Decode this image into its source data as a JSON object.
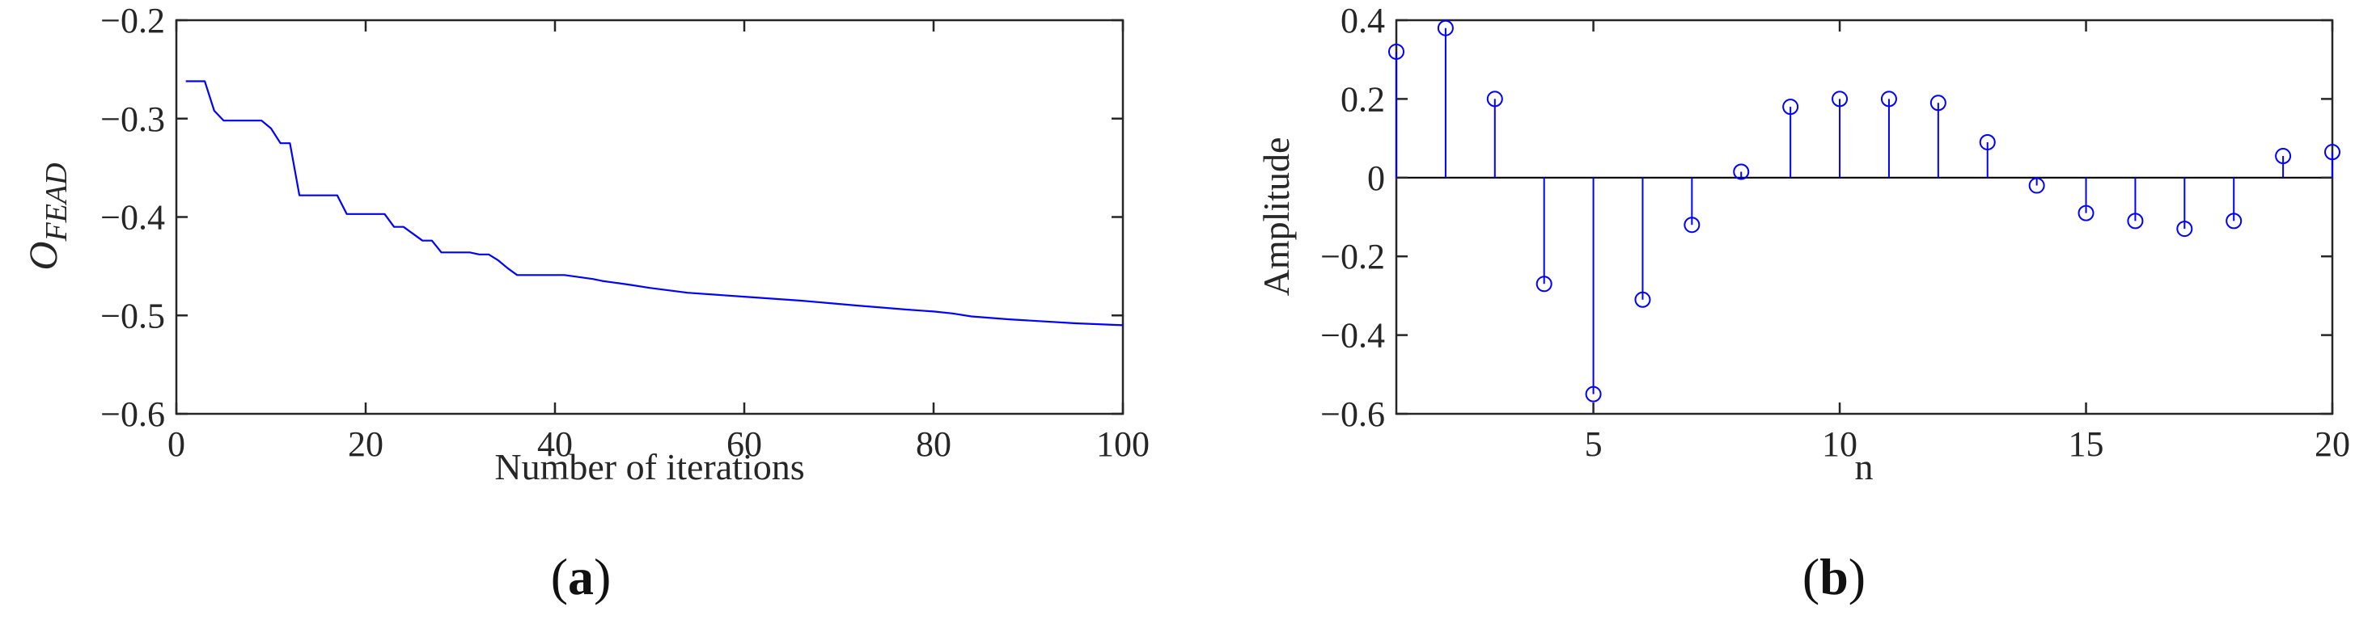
{
  "chart_data": [
    {
      "id": "a",
      "type": "line",
      "panel_label": "a",
      "xlabel": "Number of iterations",
      "ylabel_main": "O",
      "ylabel_sub": "FEAD",
      "xlim": [
        0,
        100
      ],
      "ylim": [
        -0.6,
        -0.2
      ],
      "xticks": [
        0,
        20,
        40,
        60,
        80,
        100
      ],
      "xtick_labels": [
        "0",
        "20",
        "40",
        "60",
        "80",
        "100"
      ],
      "yticks": [
        -0.6,
        -0.5,
        -0.4,
        -0.3,
        -0.2
      ],
      "ytick_labels": [
        "−0.6",
        "−0.5",
        "−0.4",
        "−0.3",
        "−0.2"
      ],
      "line_color": "#0000ff",
      "series": [
        {
          "x": [
            1,
            3,
            4,
            5,
            9,
            10,
            11,
            12,
            13,
            17,
            18,
            22,
            23,
            24,
            25,
            26,
            27,
            28,
            31,
            32,
            33,
            34,
            35,
            36,
            40,
            41,
            44,
            45,
            48,
            50,
            54,
            60,
            66,
            72,
            77,
            80,
            82,
            84,
            88,
            95,
            100
          ],
          "y": [
            -0.262,
            -0.262,
            -0.292,
            -0.302,
            -0.302,
            -0.31,
            -0.325,
            -0.325,
            -0.378,
            -0.378,
            -0.397,
            -0.397,
            -0.41,
            -0.41,
            -0.417,
            -0.424,
            -0.424,
            -0.436,
            -0.436,
            -0.438,
            -0.438,
            -0.444,
            -0.452,
            -0.459,
            -0.459,
            -0.459,
            -0.463,
            -0.465,
            -0.469,
            -0.472,
            -0.477,
            -0.481,
            -0.485,
            -0.49,
            -0.494,
            -0.496,
            -0.498,
            -0.501,
            -0.504,
            -0.508,
            -0.51
          ]
        }
      ]
    },
    {
      "id": "b",
      "type": "stem",
      "panel_label": "b",
      "xlabel": "n",
      "ylabel": "Amplitude",
      "xlim": [
        1,
        20
      ],
      "ylim": [
        -0.6,
        0.4
      ],
      "xticks": [
        5,
        10,
        15,
        20
      ],
      "xtick_labels": [
        "5",
        "10",
        "15",
        "20"
      ],
      "yticks": [
        -0.6,
        -0.4,
        -0.2,
        0,
        0.2,
        0.4
      ],
      "ytick_labels": [
        "−0.6",
        "−0.4",
        "−0.2",
        "0",
        "0.2",
        "0.4"
      ],
      "stem_color": "#0000ff",
      "series": [
        {
          "x": [
            1,
            2,
            3,
            4,
            5,
            6,
            7,
            8,
            9,
            10,
            11,
            12,
            13,
            14,
            15,
            16,
            17,
            18,
            19,
            20
          ],
          "y": [
            0.32,
            0.38,
            0.2,
            -0.27,
            -0.55,
            -0.31,
            -0.12,
            0.015,
            0.18,
            0.2,
            0.2,
            0.19,
            0.09,
            -0.02,
            -0.09,
            -0.11,
            -0.13,
            -0.11,
            0.055,
            0.065
          ]
        }
      ]
    }
  ]
}
